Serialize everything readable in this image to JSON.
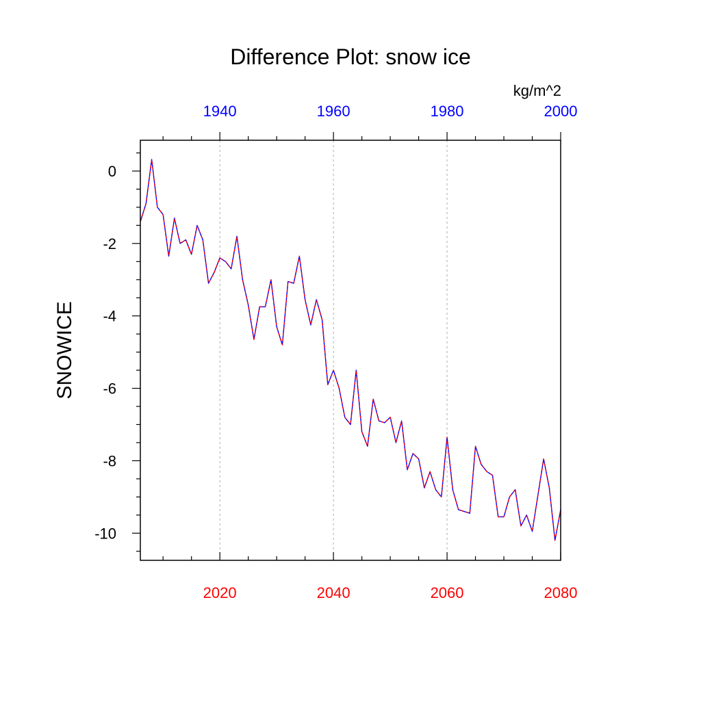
{
  "chart_data": {
    "type": "line",
    "title": "Difference Plot: snow ice",
    "units_label": "kg/m^2",
    "ylabel": "SNOWICE",
    "xlabel": "",
    "ylim": [
      -10.75,
      0.85
    ],
    "y_ticks": [
      0,
      -2,
      -4,
      -6,
      -8,
      -10
    ],
    "y_tick_labels": [
      "0",
      "-2",
      "-4",
      "-6",
      "-8",
      "-10"
    ],
    "x_bottom": {
      "range": [
        2006,
        2080
      ],
      "ticks": [
        2020,
        2040,
        2060,
        2080
      ],
      "labels": [
        "2020",
        "2040",
        "2060",
        "2080"
      ],
      "color": "#ff0000",
      "minor_step": 5
    },
    "x_top": {
      "range": [
        1926,
        2000
      ],
      "ticks": [
        1940,
        1960,
        1980,
        2000
      ],
      "labels": [
        "1940",
        "1960",
        "1980",
        "2000"
      ],
      "color": "#0000ff",
      "minor_step": 5
    },
    "grid": "dashed vertical at bottom-axis major ticks",
    "series": [
      {
        "color_solid": "#0000ff",
        "color_dash": "#ff0000",
        "x": [
          2006,
          2007,
          2008,
          2009,
          2010,
          2011,
          2012,
          2013,
          2014,
          2015,
          2016,
          2017,
          2018,
          2019,
          2020,
          2021,
          2022,
          2023,
          2024,
          2025,
          2026,
          2027,
          2028,
          2029,
          2030,
          2031,
          2032,
          2033,
          2034,
          2035,
          2036,
          2037,
          2038,
          2039,
          2040,
          2041,
          2042,
          2043,
          2044,
          2045,
          2046,
          2047,
          2048,
          2049,
          2050,
          2051,
          2052,
          2053,
          2054,
          2055,
          2056,
          2057,
          2058,
          2059,
          2060,
          2061,
          2062,
          2063,
          2064,
          2065,
          2066,
          2067,
          2068,
          2069,
          2070,
          2071,
          2072,
          2073,
          2074,
          2075,
          2076,
          2077,
          2078,
          2079,
          2080
        ],
        "y": [
          -1.4,
          -0.9,
          0.32,
          -1.0,
          -1.2,
          -2.35,
          -1.3,
          -2.0,
          -1.9,
          -2.3,
          -1.5,
          -1.9,
          -3.1,
          -2.8,
          -2.4,
          -2.5,
          -2.7,
          -1.8,
          -3.0,
          -3.7,
          -4.65,
          -3.75,
          -3.75,
          -3.0,
          -4.3,
          -4.8,
          -3.05,
          -3.1,
          -2.35,
          -3.55,
          -4.25,
          -3.55,
          -4.1,
          -5.9,
          -5.5,
          -6.0,
          -6.8,
          -7.0,
          -5.5,
          -7.2,
          -7.6,
          -6.3,
          -6.9,
          -6.95,
          -6.8,
          -7.5,
          -6.9,
          -8.25,
          -7.8,
          -7.95,
          -8.75,
          -8.3,
          -8.8,
          -9.0,
          -7.35,
          -8.8,
          -9.35,
          -9.4,
          -9.45,
          -7.6,
          -8.1,
          -8.3,
          -8.4,
          -9.55,
          -9.55,
          -9.0,
          -8.8,
          -9.8,
          -9.5,
          -9.95,
          -8.95,
          -7.95,
          -8.75,
          -10.2,
          -9.35
        ]
      }
    ]
  }
}
